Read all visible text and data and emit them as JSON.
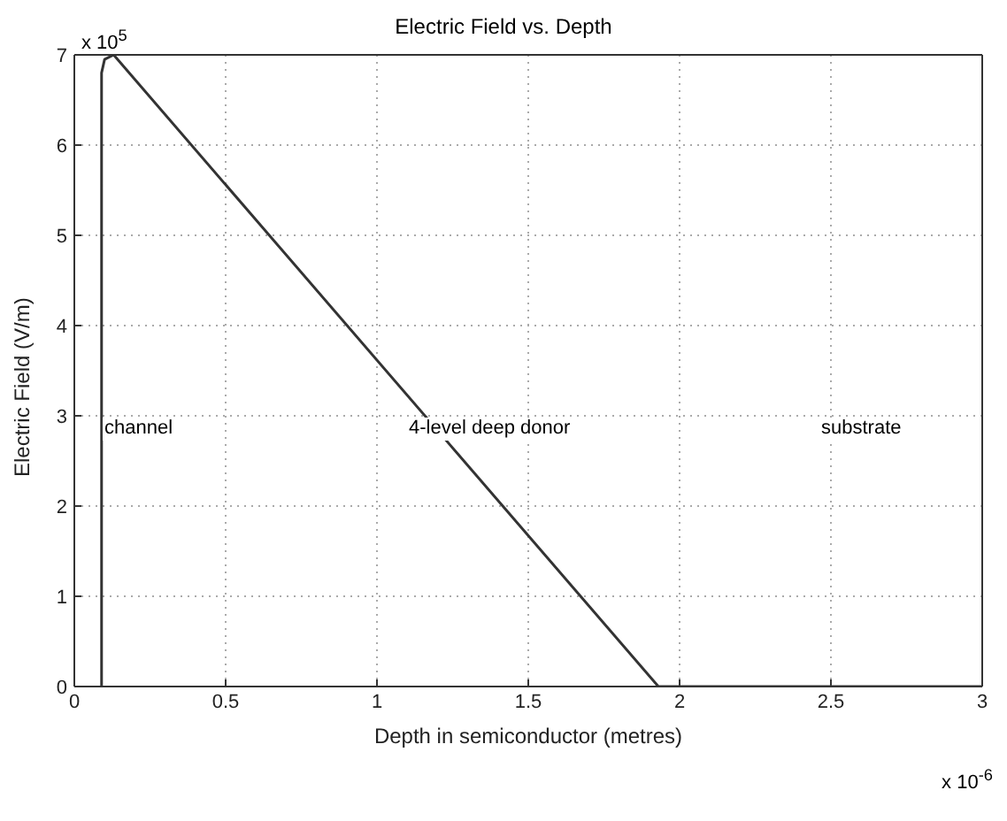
{
  "chart_data": {
    "type": "line",
    "title": "Electric Field vs. Depth",
    "xlabel": "Depth in semiconductor (metres)",
    "ylabel": "Electric Field (V/m)",
    "x": [
      0.09,
      0.09,
      0.1,
      0.13,
      1.93,
      3
    ],
    "series": [
      {
        "color": "#333333",
        "values": [
          0,
          6.8,
          6.95,
          7,
          0,
          0
        ]
      }
    ],
    "xlim": [
      0,
      3
    ],
    "xticks": [
      0,
      0.5,
      1,
      1.5,
      2,
      2.5,
      3
    ],
    "ylim": [
      0,
      7
    ],
    "yticks": [
      0,
      1,
      2,
      3,
      4,
      5,
      6,
      7
    ],
    "grid": true,
    "line_style": "solid",
    "marker": "none",
    "annotations": [
      "channel",
      "4-level deep donor",
      "substrate",
      "x 10$^{5}$",
      "x 10$^{-6}$"
    ]
  }
}
